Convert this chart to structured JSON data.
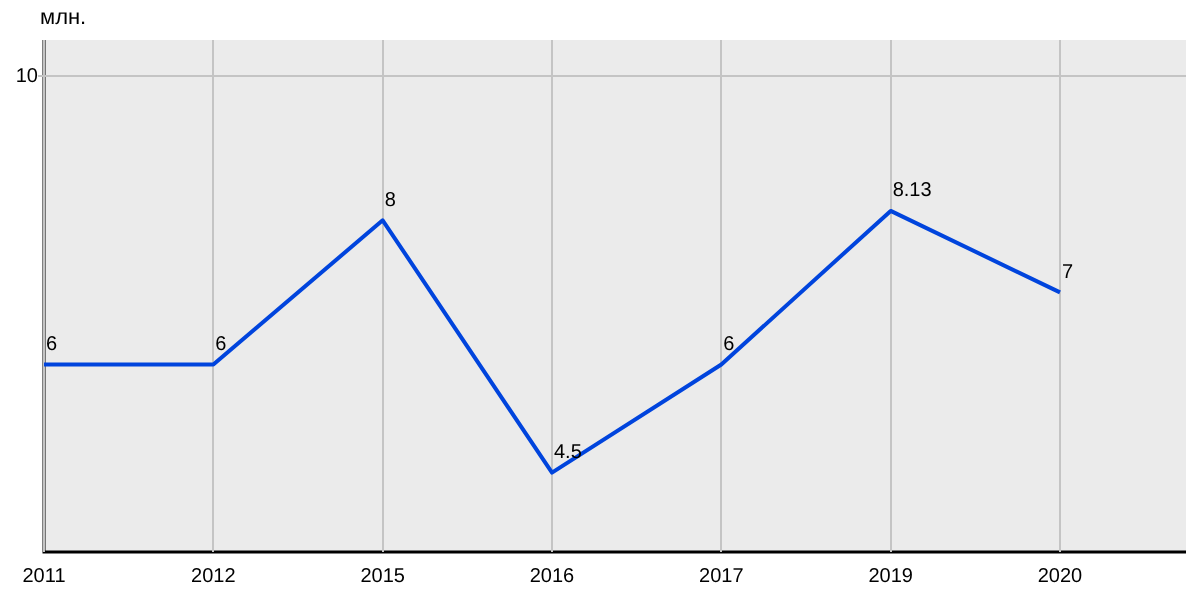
{
  "chart_data": {
    "type": "line",
    "categories": [
      "2011",
      "2012",
      "2015",
      "2016",
      "2017",
      "2019",
      "2020"
    ],
    "series": [
      {
        "color": "#0044dd",
        "values": [
          6,
          6,
          8,
          4.5,
          6,
          8.13,
          7
        ]
      }
    ],
    "ylim": [
      3.4,
      10.5
    ],
    "ref_lines": [
      {
        "axis": "y",
        "value": 10,
        "label": "10",
        "color": "#c4c4c4"
      }
    ],
    "annotations": [
      "млн."
    ],
    "grid": "x",
    "legend": false,
    "marker": "none",
    "line_style": "solid",
    "data_labels": true
  }
}
